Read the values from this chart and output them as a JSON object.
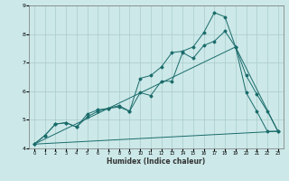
{
  "xlabel": "Humidex (Indice chaleur)",
  "xlim": [
    -0.5,
    23.5
  ],
  "ylim": [
    4,
    9
  ],
  "xticks": [
    0,
    1,
    2,
    3,
    4,
    5,
    6,
    7,
    8,
    9,
    10,
    11,
    12,
    13,
    14,
    15,
    16,
    17,
    18,
    19,
    20,
    21,
    22,
    23
  ],
  "yticks": [
    4,
    5,
    6,
    7,
    8,
    9
  ],
  "background_color": "#cce8e8",
  "grid_color": "#aacccc",
  "line_color": "#1a6b6b",
  "line1_x": [
    0,
    1,
    2,
    3,
    4,
    5,
    6,
    7,
    8,
    9,
    10,
    11,
    12,
    13,
    14,
    15,
    16,
    17,
    18,
    19,
    20,
    21,
    22,
    23
  ],
  "line1_y": [
    4.15,
    4.45,
    4.85,
    4.9,
    4.75,
    5.2,
    5.35,
    5.4,
    5.45,
    5.3,
    5.95,
    5.85,
    6.35,
    6.35,
    7.35,
    7.15,
    7.6,
    7.75,
    8.1,
    7.55,
    6.55,
    5.9,
    5.3,
    4.6
  ],
  "line2_x": [
    0,
    1,
    2,
    3,
    4,
    5,
    6,
    7,
    8,
    9,
    10,
    11,
    12,
    13,
    14,
    15,
    16,
    17,
    18,
    19,
    20,
    21,
    22,
    23
  ],
  "line2_y": [
    4.15,
    4.45,
    4.85,
    4.9,
    4.75,
    5.1,
    5.3,
    5.4,
    5.5,
    5.3,
    6.45,
    6.55,
    6.85,
    7.35,
    7.4,
    7.55,
    8.05,
    8.75,
    8.6,
    7.55,
    5.95,
    5.3,
    4.6,
    4.6
  ],
  "line3_x": [
    0,
    23
  ],
  "line3_y": [
    4.15,
    4.6
  ],
  "line4_x": [
    0,
    19,
    23
  ],
  "line4_y": [
    4.15,
    7.55,
    4.6
  ]
}
